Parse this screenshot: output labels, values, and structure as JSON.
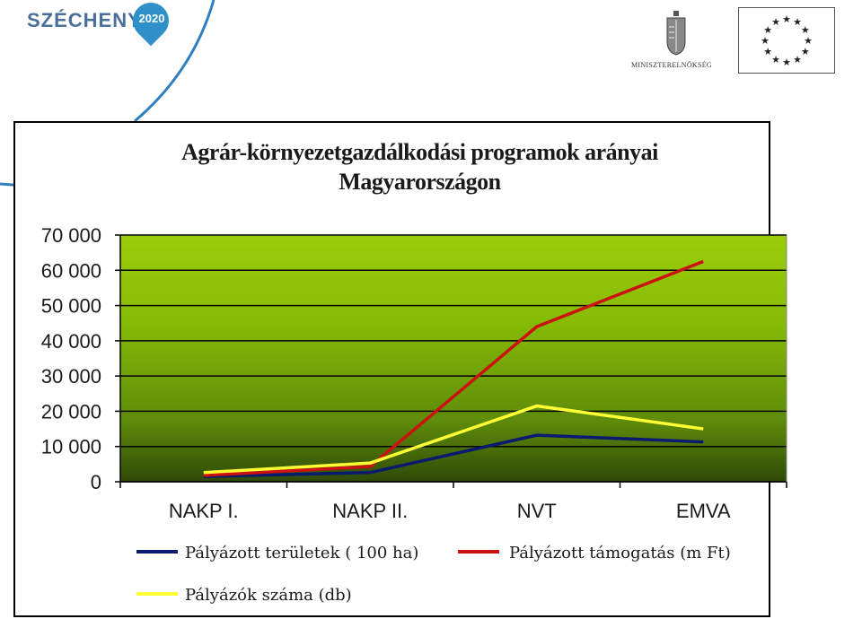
{
  "header": {
    "logo_text": "SZÉCHENYI",
    "logo_year": "2020",
    "ministry": "MINISZTERELNÖKSÉG"
  },
  "chart_data": {
    "type": "line",
    "title": "Agrár-környezetgazdálkodási programok arányai Magyarországon",
    "title_lines": [
      "Agrár-környezetgazdálkodási  programok  arányai",
      "Magyarországon"
    ],
    "categories": [
      "NAKP I.",
      "NAKP II.",
      "NVT",
      "EMVA"
    ],
    "ylim": [
      0,
      70000
    ],
    "yticks": [
      0,
      10000,
      20000,
      30000,
      40000,
      50000,
      60000,
      70000
    ],
    "ytick_labels": [
      "0",
      "10 000",
      "20 000",
      "30 000",
      "40 000",
      "50 000",
      "60 000",
      "70 000"
    ],
    "grid": true,
    "legend_position": "bottom",
    "series": [
      {
        "name": "Pályázott területek ( 100 ha)",
        "color": "#0a1a6e",
        "values": [
          1500,
          2600,
          13200,
          11300
        ]
      },
      {
        "name": "Pályázott támogatás (m Ft)",
        "color": "#cc1111",
        "values": [
          1800,
          4300,
          44000,
          62500
        ]
      },
      {
        "name": "Pályázók száma (db)",
        "color": "#ffff33",
        "values": [
          2600,
          5300,
          21500,
          15000
        ]
      }
    ]
  }
}
